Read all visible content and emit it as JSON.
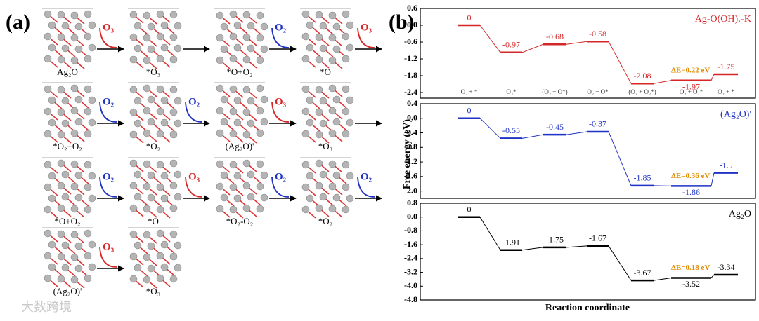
{
  "panel_a": {
    "label": "(a)",
    "rows": [
      {
        "cells": [
          "Ag₂O",
          "*O₃",
          "*O+O₂",
          "*O"
        ],
        "arrows": [
          {
            "label": "O₃",
            "color": "#d62728"
          },
          {
            "color": "#000000"
          },
          {
            "label": "O₂",
            "color": "#1f33c4"
          },
          {
            "label": "O₃",
            "color": "#d62728"
          }
        ]
      },
      {
        "cells": [
          "*O₂+O₂",
          "*O₂",
          "(Ag₂O)'",
          "*O₃"
        ],
        "arrows": [
          {
            "label": "O₂",
            "color": "#1f33c4"
          },
          {
            "label": "O₂",
            "color": "#1f33c4"
          },
          {
            "label": "O₃",
            "color": "#d62728"
          },
          {
            "color": "#000000"
          }
        ]
      },
      {
        "cells": [
          "*O+O₂",
          "*O",
          "*O₂-O₂",
          "*O₂"
        ],
        "arrows": [
          {
            "label": "O₂",
            "color": "#1f33c4"
          },
          {
            "label": "O₃",
            "color": "#d62728"
          },
          {
            "label": "O₂",
            "color": "#1f33c4"
          },
          {
            "label": "O₂",
            "color": "#1f33c4"
          }
        ]
      },
      {
        "cells": [
          "(Ag₂O)'",
          "*O₃"
        ],
        "arrows": [
          {
            "label": "O₃",
            "color": "#d62728"
          }
        ]
      }
    ]
  },
  "panel_b": {
    "label": "(b)",
    "ylabel": "Free energy (eV)",
    "xlabel": "Reaction coordinate"
  },
  "watermark": "大数跨境",
  "chart_data": [
    {
      "type": "energy-levels",
      "categories": [
        "O₃ + *",
        "O₃*",
        "(O₂ + O*)",
        "O₂ + O*",
        "(O₂ + O₂*)",
        "O₂ + O₂*",
        "O₂ + *"
      ],
      "series": [
        {
          "name": "Ag-O(OH)ₓ-K",
          "color": "#d62728",
          "values": [
            0,
            -0.97,
            -0.68,
            -0.58,
            -2.08,
            -1.97,
            -1.75
          ]
        }
      ],
      "annotation": "ΔE=0.22 eV",
      "ylim": [
        -2.6,
        0.6
      ],
      "yticks": [
        0.6,
        {
          "value": 0,
          "label": "0.0"
        },
        -0.6,
        -1.2,
        -1.8,
        -2.4
      ]
    },
    {
      "type": "energy-levels",
      "series": [
        {
          "name": "(Ag₂O)'",
          "color": "#1f33c4",
          "values": [
            0,
            -0.55,
            -0.45,
            -0.37,
            -1.85,
            -1.86,
            -1.5
          ]
        }
      ],
      "annotation": "ΔE=0.36 eV",
      "ylim": [
        -2.2,
        0.4
      ],
      "yticks": [
        0.4,
        {
          "value": 0,
          "label": "0.0"
        },
        -0.4,
        -0.8,
        -1.2,
        -1.6,
        {
          "value": -2,
          "label": "-2.0"
        }
      ]
    },
    {
      "type": "energy-levels",
      "series": [
        {
          "name": "Ag₂O",
          "color": "#000000",
          "values": [
            0,
            -1.91,
            -1.75,
            -1.67,
            -3.67,
            -3.52,
            -3.34
          ]
        }
      ],
      "annotation": "ΔE=0.18 eV",
      "ylim": [
        -4.8,
        0.8
      ],
      "yticks": [
        0.8,
        {
          "value": 0,
          "label": "0.0"
        },
        -0.8,
        -1.6,
        -2.4,
        -3.2,
        {
          "value": -4,
          "label": "-4.0"
        },
        -4.8
      ]
    }
  ]
}
